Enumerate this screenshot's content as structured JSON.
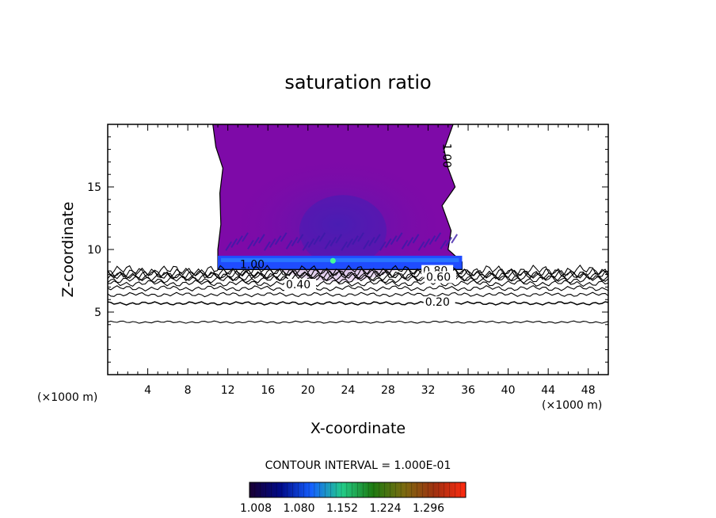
{
  "chart_data": {
    "type": "heatmap",
    "title": "saturation ratio",
    "xlabel": "X-coordinate",
    "ylabel": "Z-coordinate",
    "x_unit": "(×1000 m)",
    "x_unit_right": "(×1000 m)",
    "xlim": [
      0,
      50
    ],
    "ylim": [
      0,
      20
    ],
    "x_ticks": [
      4,
      8,
      12,
      16,
      20,
      24,
      28,
      32,
      36,
      40,
      44,
      48
    ],
    "y_ticks": [
      5,
      10,
      15
    ],
    "contour_interval_text": "CONTOUR INTERVAL = 1.000E-01",
    "contour_levels": [
      0.1,
      0.2,
      0.3,
      0.4,
      0.5,
      0.6,
      0.7,
      0.8,
      0.9,
      1.0
    ],
    "contour_heights_km": [
      4.2,
      5.7,
      6.4,
      6.9,
      7.3,
      7.6,
      7.8,
      8.0,
      8.1,
      8.3
    ],
    "contour_labels": [
      {
        "text": "1.00",
        "x": 13.2,
        "z": 8.5
      },
      {
        "text": "0.80",
        "x": 31.5,
        "z": 8.0
      },
      {
        "text": "0.60",
        "x": 31.8,
        "z": 7.5
      },
      {
        "text": "0.40",
        "x": 17.8,
        "z": 6.9
      },
      {
        "text": "0.20",
        "x": 31.7,
        "z": 5.5
      },
      {
        "text": "1.00",
        "x": 33.1,
        "z": 17.5
      }
    ],
    "supersaturated_region": {
      "x_range": [
        10.5,
        35.5
      ],
      "z_range": [
        8.4,
        20
      ],
      "left_edge": [
        [
          10.5,
          20
        ],
        [
          10.8,
          18.2
        ],
        [
          11.5,
          16.5
        ],
        [
          11.2,
          14.5
        ],
        [
          11.3,
          12.0
        ],
        [
          11.0,
          10.0
        ],
        [
          11.0,
          8.4
        ]
      ],
      "right_edge": [
        [
          34.5,
          20
        ],
        [
          33.6,
          18.0
        ],
        [
          34.0,
          16.5
        ],
        [
          34.7,
          15.0
        ],
        [
          33.4,
          13.5
        ],
        [
          34.3,
          11.5
        ],
        [
          34.0,
          10.0
        ],
        [
          35.4,
          9.0
        ],
        [
          35.4,
          8.4
        ]
      ]
    },
    "colorbar": {
      "ticks": [
        "1.008",
        "1.080",
        "1.152",
        "1.224",
        "1.296"
      ],
      "colors": [
        "#1a0033",
        "#000a88",
        "#1560ff",
        "#22cc88",
        "#1d7a10",
        "#7a6a10",
        "#a03010",
        "#ff2a10"
      ]
    }
  }
}
